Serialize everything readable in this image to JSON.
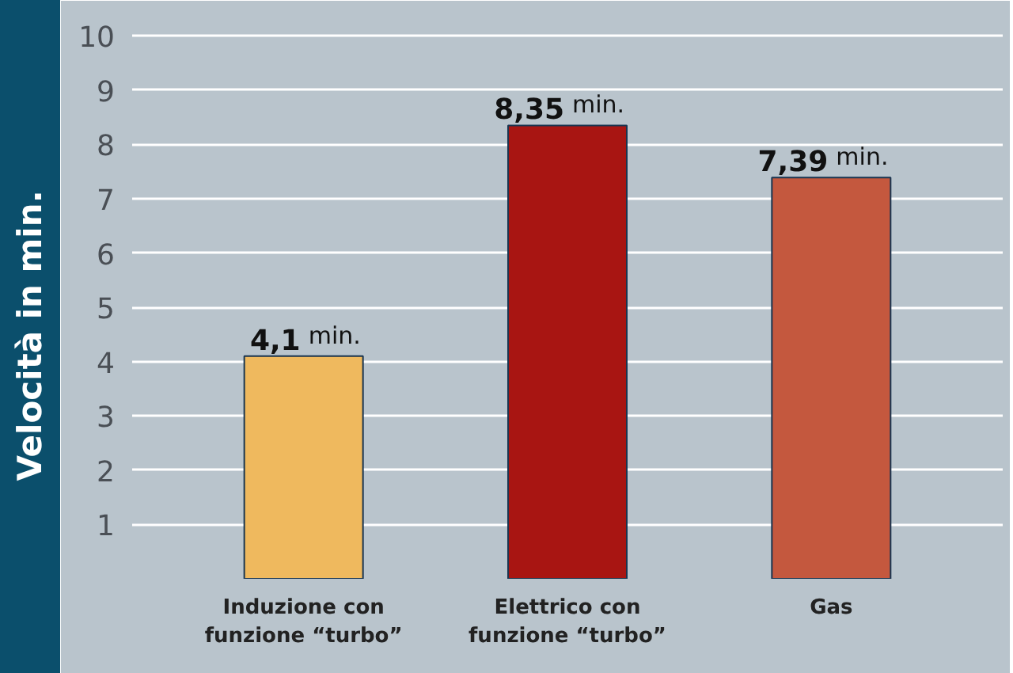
{
  "chart_data": {
    "type": "bar",
    "ylabel": "Velocità in min.",
    "categories": [
      "Induzione con\nfunzione “turbo”",
      "Elettrico con\nfunzione “turbo”",
      "Gas"
    ],
    "values": [
      4.1,
      8.35,
      7.39
    ],
    "colors": [
      "#efb95e",
      "#a81512",
      "#c4583e"
    ],
    "value_labels": [
      "4,1 min.",
      "8,35 min.",
      "7,39 min."
    ],
    "ylim": [
      0,
      10.5
    ],
    "yticks": [
      1,
      2,
      3,
      4,
      5,
      6,
      7,
      8,
      9,
      10
    ],
    "grid": "y"
  }
}
